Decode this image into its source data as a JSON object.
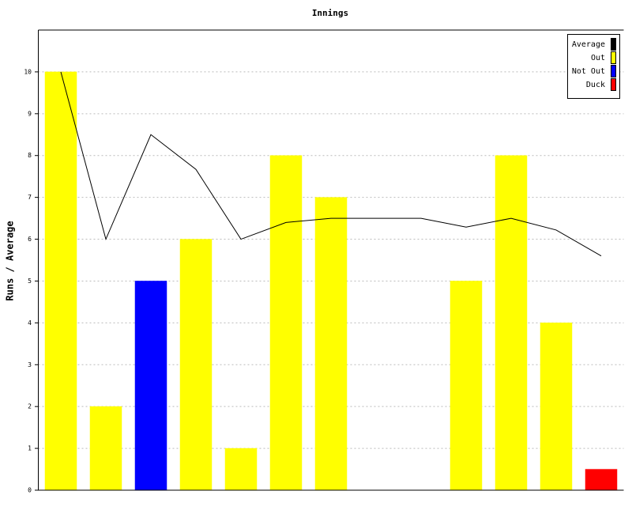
{
  "chart_data": {
    "type": "bar",
    "title": "Innings",
    "y_label": "Runs / Average",
    "ylim": [
      0,
      11
    ],
    "yticks": [
      0,
      1,
      2,
      3,
      4,
      5,
      6,
      7,
      8,
      9,
      10
    ],
    "grid": true,
    "legend": "top-right",
    "series": [
      {
        "name": "Average",
        "type": "line",
        "color": "#000000",
        "values": [
          10,
          6,
          8.5,
          7.67,
          6,
          6.4,
          6.5,
          6.5,
          6.5,
          6.29,
          6.5,
          6.22,
          5.6
        ]
      },
      {
        "name": "Out",
        "color": "#ffff00",
        "values": [
          10,
          2,
          null,
          6,
          1,
          8,
          7,
          null,
          null,
          5,
          8,
          4,
          null
        ]
      },
      {
        "name": "Not Out",
        "color": "#0000ff",
        "values": [
          null,
          null,
          5,
          null,
          null,
          null,
          null,
          0,
          0,
          null,
          null,
          null,
          null
        ]
      },
      {
        "name": "Duck",
        "color": "#ff0000",
        "values": [
          null,
          null,
          null,
          null,
          null,
          null,
          null,
          null,
          null,
          null,
          null,
          null,
          0.5
        ]
      }
    ]
  }
}
